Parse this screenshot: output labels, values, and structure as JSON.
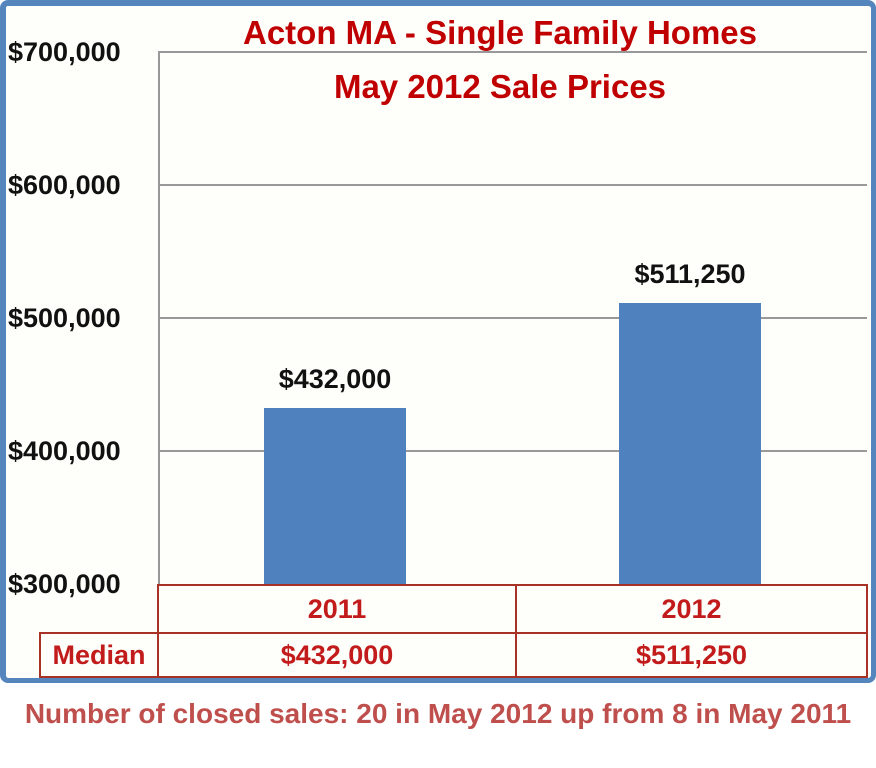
{
  "title": {
    "line1": "Acton MA - Single Family Homes",
    "line2": "May 2012 Sale Prices"
  },
  "chart_data": {
    "type": "bar",
    "title": "Acton MA - Single Family Homes May 2012 Sale Prices",
    "categories": [
      "2011",
      "2012"
    ],
    "values": [
      432000,
      511250
    ],
    "bar_labels": [
      "$432,000",
      "$511,250"
    ],
    "xlabel": "",
    "ylabel": "",
    "ylim": [
      300000,
      700000
    ],
    "ytick_step": 100000,
    "ytick_labels": [
      "$300,000",
      "$400,000",
      "$500,000",
      "$600,000",
      "$700,000"
    ],
    "grid": true,
    "legend": false,
    "bar_color": "#4E81BD"
  },
  "table": {
    "row_header": "Median",
    "columns": [
      "2011",
      "2012"
    ],
    "values": [
      "$432,000",
      "$511,250"
    ]
  },
  "caption": "Number of closed sales: 20 in May 2012 up from 8 in May 2011",
  "colors": {
    "title_red": "#C00000",
    "table_text_red": "#C21B1B",
    "table_border_red": "#A93226",
    "caption_red": "#BF4F4C",
    "bar_blue": "#4E81BD",
    "frame_blue": "#5585BD",
    "grid_gray": "#999999",
    "label_black": "#111111"
  }
}
